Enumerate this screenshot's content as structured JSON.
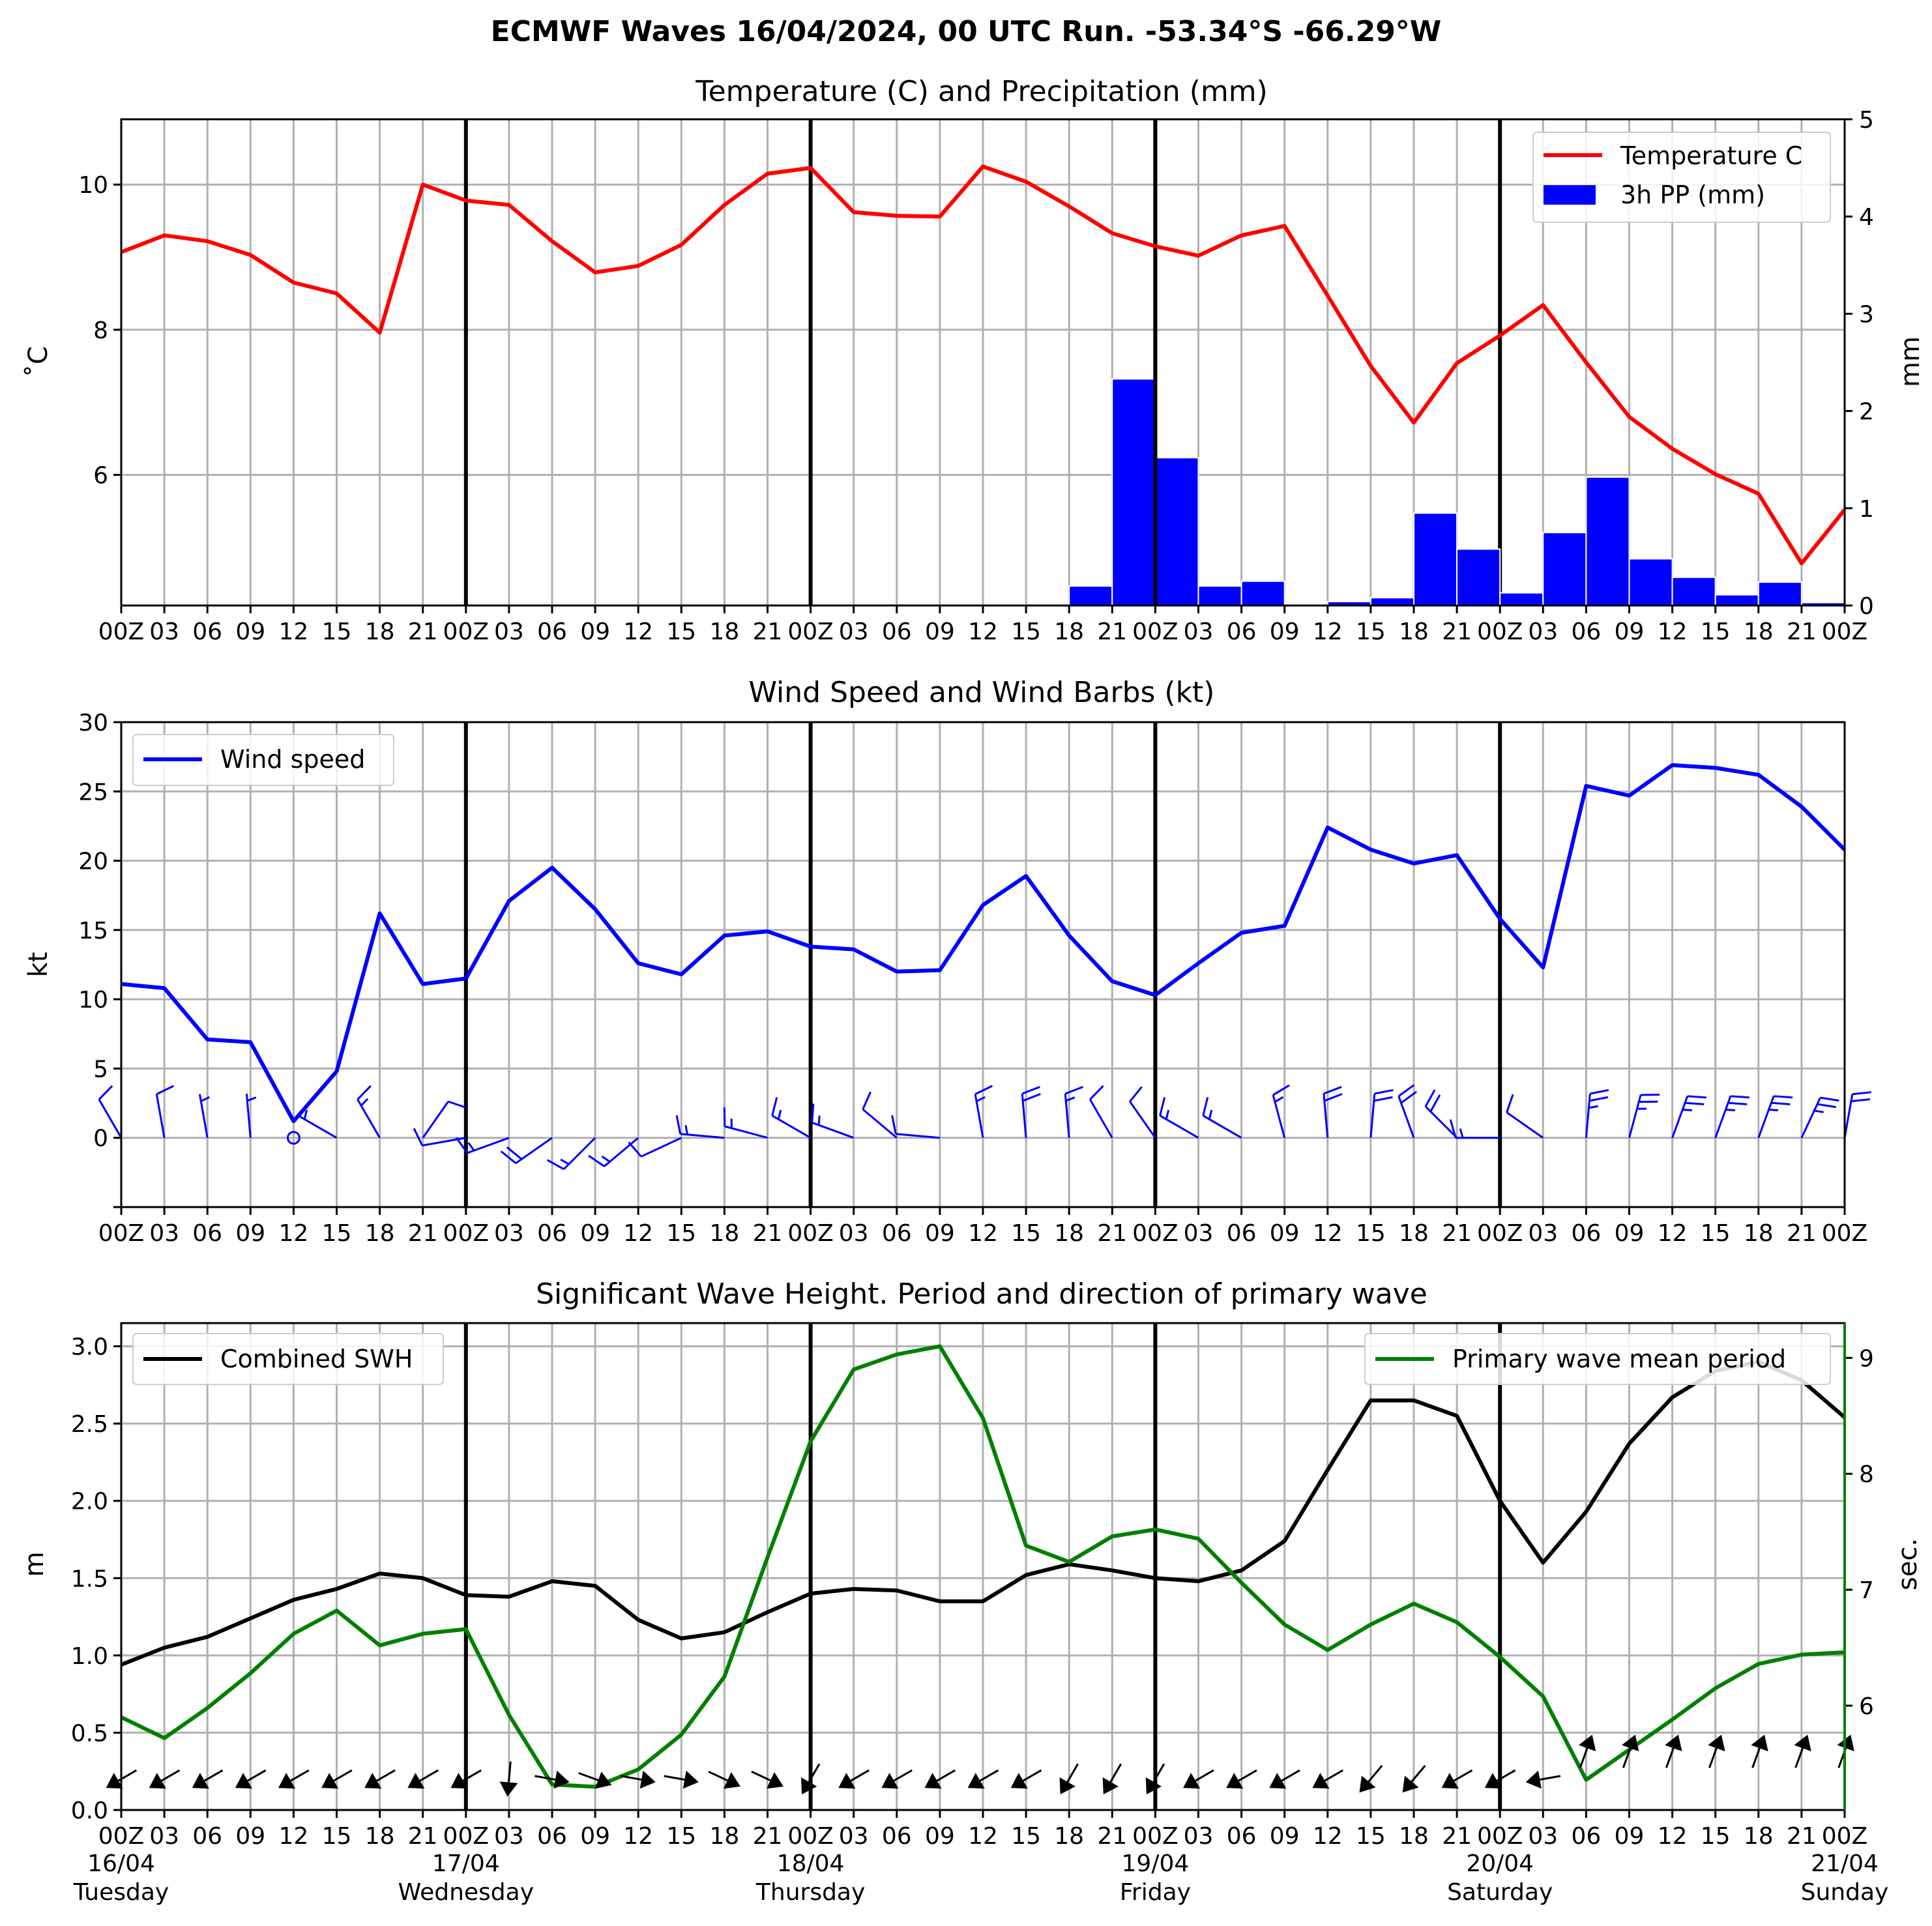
{
  "figure": {
    "suptitle": "ECMWF Waves 16/04/2024, 00 UTC Run. -53.34°S -66.29°W"
  },
  "colors": {
    "temperature": "#ff0000",
    "precip": "#0000ff",
    "wind": "#0000ff",
    "swh": "#000000",
    "period": "#008000"
  },
  "hour_ticks": [
    "00Z",
    "03",
    "06",
    "09",
    "12",
    "15",
    "18",
    "21",
    "00Z",
    "03",
    "06",
    "09",
    "12",
    "15",
    "18",
    "21",
    "00Z",
    "03",
    "06",
    "09",
    "12",
    "15",
    "18",
    "21",
    "00Z",
    "03",
    "06",
    "09",
    "12",
    "15",
    "18",
    "21",
    "00Z",
    "03",
    "06",
    "09",
    "12",
    "15",
    "18",
    "21",
    "00Z"
  ],
  "day_ticks": [
    {
      "date": "16/04",
      "day": "Tuesday"
    },
    {
      "date": "17/04",
      "day": "Wednesday"
    },
    {
      "date": "18/04",
      "day": "Thursday"
    },
    {
      "date": "19/04",
      "day": "Friday"
    },
    {
      "date": "20/04",
      "day": "Saturday"
    },
    {
      "date": "21/04",
      "day": "Sunday"
    }
  ],
  "chart_data": [
    {
      "type": "line",
      "title": "Temperature (C) and Precipitation (mm)",
      "ylabel": "$^\\circ$C",
      "ylabel_display": "˚C",
      "y2label": "mm",
      "x_hours": [
        0,
        3,
        6,
        9,
        12,
        15,
        18,
        21,
        24,
        27,
        30,
        33,
        36,
        39,
        42,
        45,
        48,
        51,
        54,
        57,
        60,
        63,
        66,
        69,
        72,
        75,
        78,
        81,
        84,
        87,
        90,
        93,
        96,
        99,
        102,
        105,
        108,
        111,
        114,
        117,
        120
      ],
      "ylim": [
        4.2,
        10.9
      ],
      "y_ticks": [
        6,
        8,
        10
      ],
      "y2lim": [
        0,
        5
      ],
      "y2_ticks": [
        0,
        1,
        2,
        3,
        4,
        5
      ],
      "legend_position": "upper right",
      "grid": true,
      "series": [
        {
          "name": "Temperature C",
          "axis": "left",
          "values": [
            9.07,
            9.3,
            9.22,
            9.03,
            8.65,
            8.5,
            7.96,
            10.0,
            9.78,
            9.72,
            9.22,
            8.79,
            8.88,
            9.17,
            9.72,
            10.15,
            10.23,
            9.62,
            9.57,
            9.56,
            10.25,
            10.04,
            9.7,
            9.33,
            9.15,
            9.02,
            9.3,
            9.43,
            8.47,
            7.5,
            6.72,
            7.54,
            7.92,
            8.34,
            7.55,
            6.8,
            6.36,
            6.01,
            5.74,
            4.78,
            5.52
          ]
        },
        {
          "name": "3h PP (mm)",
          "axis": "right",
          "type": "bar",
          "values": [
            0,
            0,
            0,
            0,
            0,
            0,
            0,
            0,
            0,
            0,
            0,
            0,
            0,
            0,
            0,
            0,
            0,
            0,
            0,
            0,
            0,
            0,
            0.2,
            2.33,
            1.52,
            0.2,
            0.25,
            0.01,
            0.04,
            0.08,
            0.95,
            0.58,
            0.13,
            0.75,
            1.32,
            0.48,
            0.29,
            0.11,
            0.24,
            0.03
          ]
        }
      ]
    },
    {
      "type": "line",
      "title": "Wind Speed and Wind Barbs (kt)",
      "ylabel": "kt",
      "x_hours": [
        0,
        3,
        6,
        9,
        12,
        15,
        18,
        21,
        24,
        27,
        30,
        33,
        36,
        39,
        42,
        45,
        48,
        51,
        54,
        57,
        60,
        63,
        66,
        69,
        72,
        75,
        78,
        81,
        84,
        87,
        90,
        93,
        96,
        99,
        102,
        105,
        108,
        111,
        114,
        117,
        120
      ],
      "ylim": [
        -5,
        30
      ],
      "y_ticks": [
        0,
        5,
        10,
        15,
        20,
        25,
        30
      ],
      "legend_position": "upper left",
      "grid": true,
      "series": [
        {
          "name": "Wind speed",
          "values": [
            11.1,
            10.8,
            7.1,
            6.9,
            1.2,
            4.8,
            16.2,
            11.1,
            11.5,
            17.1,
            19.5,
            16.5,
            12.6,
            11.8,
            14.6,
            14.9,
            13.8,
            13.6,
            12.0,
            12.1,
            16.8,
            18.9,
            14.6,
            11.3,
            10.3,
            12.6,
            14.8,
            15.3,
            22.4,
            20.8,
            19.8,
            20.4,
            15.8,
            12.3,
            25.4,
            24.7,
            26.9,
            26.7,
            26.2,
            23.9,
            20.8
          ]
        }
      ],
      "barb_directions_deg": [
        330,
        350,
        350,
        355,
        0,
        300,
        330,
        35,
        260,
        250,
        235,
        225,
        230,
        245,
        275,
        285,
        300,
        290,
        310,
        275,
        350,
        355,
        355,
        330,
        325,
        300,
        300,
        345,
        355,
        5,
        340,
        315,
        270,
        305,
        5,
        15,
        20,
        20,
        20,
        25,
        10
      ]
    },
    {
      "type": "line",
      "title": "Significant Wave Height. Period and direction of primary wave",
      "ylabel": "m",
      "y2label": "sec.",
      "x_hours": [
        0,
        3,
        6,
        9,
        12,
        15,
        18,
        21,
        24,
        27,
        30,
        33,
        36,
        39,
        42,
        45,
        48,
        51,
        54,
        57,
        60,
        63,
        66,
        69,
        72,
        75,
        78,
        81,
        84,
        87,
        90,
        93,
        96,
        99,
        102,
        105,
        108,
        111,
        114,
        117,
        120
      ],
      "ylim": [
        0.0,
        3.15
      ],
      "y_ticks": [
        0.0,
        0.5,
        1.0,
        1.5,
        2.0,
        2.5,
        3.0
      ],
      "y2lim": [
        5.1,
        9.3
      ],
      "y2_ticks": [
        6,
        7,
        8,
        9
      ],
      "grid": true,
      "series": [
        {
          "name": "Combined SWH",
          "axis": "left",
          "legend_position": "upper left",
          "values": [
            0.94,
            1.05,
            1.12,
            1.24,
            1.36,
            1.43,
            1.53,
            1.5,
            1.39,
            1.38,
            1.48,
            1.45,
            1.23,
            1.11,
            1.15,
            1.28,
            1.4,
            1.43,
            1.42,
            1.35,
            1.35,
            1.52,
            1.59,
            1.55,
            1.5,
            1.48,
            1.55,
            1.74,
            2.2,
            2.65,
            2.65,
            2.55,
            2.0,
            1.6,
            1.93,
            2.37,
            2.67,
            2.84,
            2.9,
            2.78,
            2.54
          ]
        },
        {
          "name": "Primary wave mean period",
          "axis": "right",
          "legend_position": "upper right",
          "values": [
            5.9,
            5.72,
            5.98,
            6.28,
            6.62,
            6.82,
            6.52,
            6.62,
            6.66,
            5.92,
            5.32,
            5.3,
            5.45,
            5.75,
            6.25,
            7.28,
            8.28,
            8.9,
            9.03,
            9.1,
            8.48,
            7.38,
            7.24,
            7.46,
            7.52,
            7.44,
            7.06,
            6.7,
            6.48,
            6.7,
            6.88,
            6.72,
            6.42,
            6.08,
            5.36,
            5.62,
            5.88,
            6.15,
            6.36,
            6.44,
            6.46
          ]
        }
      ],
      "wave_directions_deg": [
        60,
        60,
        60,
        60,
        60,
        60,
        60,
        60,
        60,
        5,
        280,
        290,
        280,
        280,
        295,
        295,
        30,
        60,
        60,
        60,
        60,
        60,
        30,
        30,
        30,
        60,
        60,
        60,
        60,
        40,
        40,
        60,
        60,
        80,
        200,
        200,
        200,
        200,
        200,
        200,
        200
      ]
    }
  ]
}
